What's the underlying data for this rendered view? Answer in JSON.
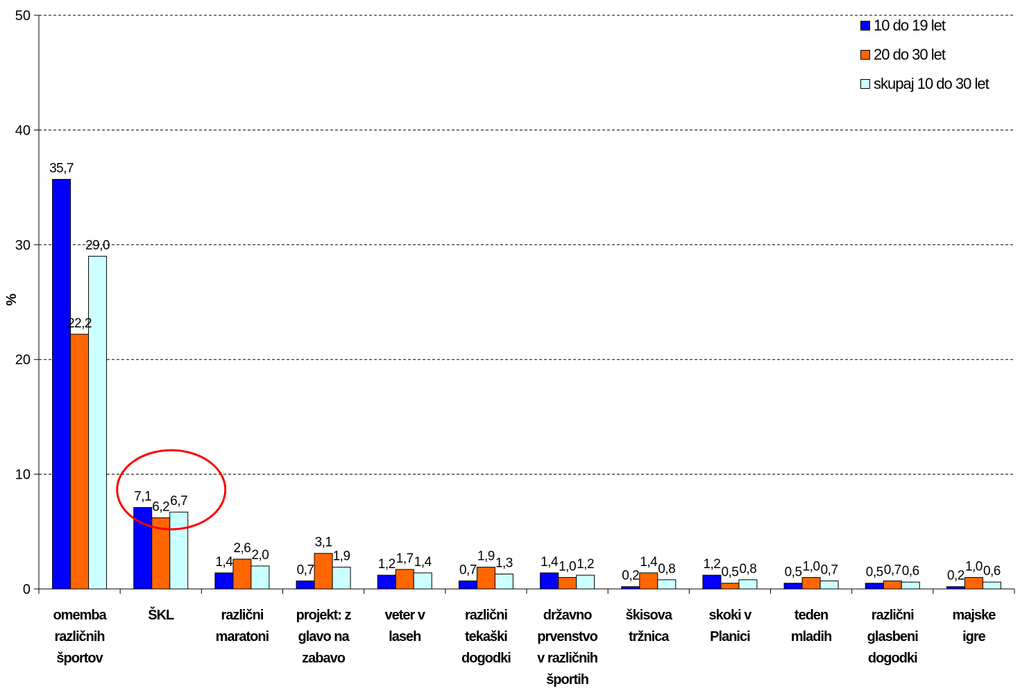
{
  "chart_data": {
    "type": "bar",
    "ylabel": "%",
    "xlabel": "",
    "ylim": [
      0,
      50
    ],
    "yticks": [
      "0",
      "10",
      "20",
      "30",
      "40",
      "50"
    ],
    "grid": true,
    "legend_position": "top-right",
    "categories": [
      [
        "omemba",
        "različnih",
        "športov"
      ],
      [
        "ŠKL"
      ],
      [
        "različni",
        "maratoni"
      ],
      [
        "projekt: z",
        "glavo na",
        "zabavo"
      ],
      [
        "veter v",
        "laseh"
      ],
      [
        "različni",
        "tekaški",
        "dogodki"
      ],
      [
        "državno",
        "prvenstvo",
        "v različnih",
        "športih"
      ],
      [
        "škisova",
        "tržnica"
      ],
      [
        "skoki v",
        "Planici"
      ],
      [
        "teden",
        "mladih"
      ],
      [
        "različni",
        "glasbeni",
        "dogodki"
      ],
      [
        "majske",
        "igre"
      ]
    ],
    "series": [
      {
        "name": "10 do 19 let",
        "color": "#0000ff",
        "values": [
          35.7,
          7.1,
          1.4,
          0.7,
          1.2,
          0.7,
          1.4,
          0.2,
          1.2,
          0.5,
          0.5,
          0.2
        ],
        "labels": [
          "35,7",
          "7,1",
          "1,4",
          "0,7",
          "1,2",
          "0,7",
          "1,4",
          "0,2",
          "1,2",
          "0,5",
          "0,5",
          "0,2"
        ]
      },
      {
        "name": "20 do 30 let",
        "color": "#ff6600",
        "values": [
          22.2,
          6.2,
          2.6,
          3.1,
          1.7,
          1.9,
          1.0,
          1.4,
          0.5,
          1.0,
          0.7,
          1.0
        ],
        "labels": [
          "22,2",
          "6,2",
          "2,6",
          "3,1",
          "1,7",
          "1,9",
          "1,0",
          "1,4",
          "0,5",
          "1,0",
          "0,7",
          "1,0"
        ]
      },
      {
        "name": "skupaj 10 do 30 let",
        "color": "#ccffff",
        "values": [
          29.0,
          6.7,
          2.0,
          1.9,
          1.4,
          1.3,
          1.2,
          0.8,
          0.8,
          0.7,
          0.6,
          0.6
        ],
        "labels": [
          "29,0",
          "6,7",
          "2,0",
          "1,9",
          "1,4",
          "1,3",
          "1,2",
          "0,8",
          "0,8",
          "0,7",
          "0,6",
          "0,6"
        ]
      }
    ],
    "annotations": [
      {
        "type": "ellipse",
        "category_index": 1,
        "color": "#ff0000"
      }
    ]
  }
}
